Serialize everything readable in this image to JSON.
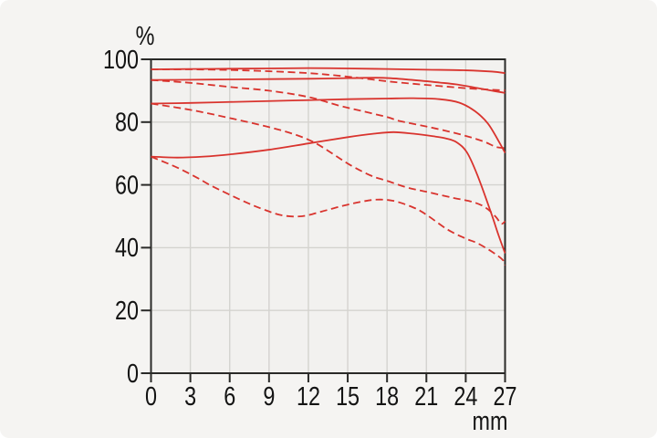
{
  "chart_data": {
    "type": "line",
    "title": "",
    "xlabel": "mm",
    "ylabel": "%",
    "xlim": [
      0,
      27
    ],
    "ylim": [
      0,
      100
    ],
    "x_ticks": [
      0,
      3,
      6,
      9,
      12,
      15,
      18,
      21,
      24,
      27
    ],
    "y_ticks": [
      0,
      20,
      40,
      60,
      80,
      100
    ],
    "grid": true,
    "legend": "none",
    "line_color": "#d9342e",
    "series": [
      {
        "name": "curve-1-solid",
        "style": "solid",
        "points": [
          [
            0,
            96.8
          ],
          [
            3,
            96.9
          ],
          [
            6,
            97.0
          ],
          [
            9,
            97.1
          ],
          [
            12,
            97.2
          ],
          [
            15,
            97.1
          ],
          [
            18,
            96.9
          ],
          [
            21,
            96.7
          ],
          [
            24,
            96.5
          ],
          [
            26,
            96.1
          ],
          [
            27,
            95.6
          ]
        ]
      },
      {
        "name": "curve-1-dashed",
        "style": "dashed",
        "points": [
          [
            0,
            96.8
          ],
          [
            3,
            96.8
          ],
          [
            6,
            96.6
          ],
          [
            9,
            96.2
          ],
          [
            12,
            95.6
          ],
          [
            14,
            94.9
          ],
          [
            16,
            94.0
          ],
          [
            18,
            93.0
          ],
          [
            20,
            92.2
          ],
          [
            22,
            91.5
          ],
          [
            24,
            90.8
          ],
          [
            26,
            90.3
          ],
          [
            27,
            90.1
          ]
        ]
      },
      {
        "name": "curve-2-solid",
        "style": "solid",
        "points": [
          [
            0,
            93.4
          ],
          [
            3,
            93.5
          ],
          [
            6,
            93.6
          ],
          [
            9,
            93.7
          ],
          [
            12,
            93.8
          ],
          [
            15,
            94.0
          ],
          [
            17.7,
            94.1
          ],
          [
            20,
            93.4
          ],
          [
            22,
            92.6
          ],
          [
            23.3,
            92.0
          ],
          [
            24.7,
            91.0
          ],
          [
            26,
            90.0
          ],
          [
            27,
            89.3
          ]
        ]
      },
      {
        "name": "curve-2-dashed",
        "style": "dashed",
        "points": [
          [
            0,
            93.4
          ],
          [
            3,
            92.5
          ],
          [
            6,
            91.2
          ],
          [
            9,
            90.0
          ],
          [
            12,
            88.0
          ],
          [
            14.3,
            85.3
          ],
          [
            16,
            83.6
          ],
          [
            18,
            81.6
          ],
          [
            19,
            80.3
          ],
          [
            21,
            78.6
          ],
          [
            23,
            76.7
          ],
          [
            24.5,
            75.0
          ],
          [
            25.5,
            73.6
          ],
          [
            26.3,
            72.1
          ],
          [
            27,
            71.7
          ]
        ]
      },
      {
        "name": "curve-3-solid",
        "style": "solid",
        "points": [
          [
            0,
            85.9
          ],
          [
            3,
            86.1
          ],
          [
            6,
            86.4
          ],
          [
            9,
            86.7
          ],
          [
            12,
            87.0
          ],
          [
            15,
            87.3
          ],
          [
            18,
            87.5
          ],
          [
            20,
            87.6
          ],
          [
            22,
            87.3
          ],
          [
            23.5,
            86.2
          ],
          [
            24.7,
            83.5
          ],
          [
            25.7,
            79.5
          ],
          [
            26.5,
            74.0
          ],
          [
            27,
            70.2
          ]
        ]
      },
      {
        "name": "curve-3-dashed",
        "style": "dashed",
        "points": [
          [
            0,
            85.9
          ],
          [
            3,
            83.9
          ],
          [
            6,
            81.3
          ],
          [
            9,
            78.4
          ],
          [
            11,
            76.0
          ],
          [
            12.5,
            73.4
          ],
          [
            14,
            69.5
          ],
          [
            15.2,
            66.3
          ],
          [
            16.8,
            62.9
          ],
          [
            18,
            61.3
          ],
          [
            19.5,
            59.2
          ],
          [
            21,
            57.8
          ],
          [
            23,
            55.9
          ],
          [
            24.5,
            54.6
          ],
          [
            25.5,
            52.8
          ],
          [
            26.3,
            49.8
          ],
          [
            26.7,
            47.6
          ],
          [
            27,
            48.4
          ]
        ]
      },
      {
        "name": "curve-4-solid",
        "style": "solid",
        "points": [
          [
            0,
            69.0
          ],
          [
            2,
            68.7
          ],
          [
            4,
            69.0
          ],
          [
            6,
            69.7
          ],
          [
            9,
            71.2
          ],
          [
            12,
            73.2
          ],
          [
            15,
            75.2
          ],
          [
            17,
            76.3
          ],
          [
            18.5,
            76.8
          ],
          [
            20,
            76.3
          ],
          [
            21.5,
            75.5
          ],
          [
            22.5,
            74.8
          ],
          [
            23.3,
            73.6
          ],
          [
            24.1,
            70.3
          ],
          [
            24.9,
            63.0
          ],
          [
            25.9,
            51.5
          ],
          [
            26.5,
            44.0
          ],
          [
            27,
            38.2
          ]
        ]
      },
      {
        "name": "curve-4-dashed",
        "style": "dashed",
        "points": [
          [
            0,
            69.0
          ],
          [
            2,
            65.5
          ],
          [
            3.5,
            62.3
          ],
          [
            4.7,
            59.5
          ],
          [
            7,
            54.9
          ],
          [
            8.5,
            52.3
          ],
          [
            10,
            50.3
          ],
          [
            11.5,
            50.0
          ],
          [
            13,
            51.5
          ],
          [
            14.5,
            53.2
          ],
          [
            16,
            54.6
          ],
          [
            17.2,
            55.3
          ],
          [
            18.5,
            54.9
          ],
          [
            20,
            52.8
          ],
          [
            21,
            50.5
          ],
          [
            22.6,
            45.8
          ],
          [
            24,
            42.9
          ],
          [
            24.9,
            41.4
          ],
          [
            26,
            38.7
          ],
          [
            26.8,
            36.2
          ],
          [
            27,
            34.4
          ]
        ]
      }
    ]
  },
  "colors": {
    "background": "#f5f4f2",
    "plot_bg": "#f2f1ef",
    "grid": "#d4d3cf",
    "frame": "#2a2a28",
    "text": "#141414",
    "curve": "#d9342e"
  }
}
